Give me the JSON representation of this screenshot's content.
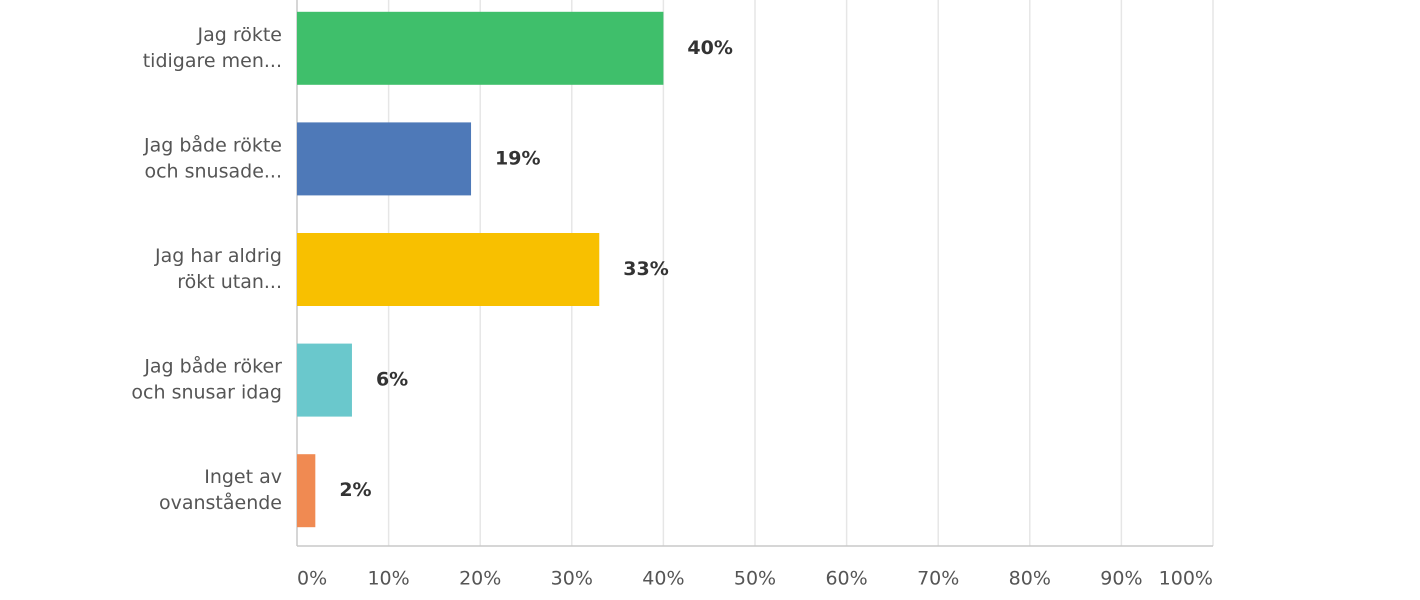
{
  "chart_data": {
    "type": "hbar",
    "categories": [
      [
        "Jag rökte",
        "tidigare men..."
      ],
      [
        "Jag både rökte",
        "och snusade..."
      ],
      [
        "Jag har aldrig",
        "rökt utan..."
      ],
      [
        "Jag både röker",
        "och snusar idag"
      ],
      [
        "Inget av",
        "ovanstående"
      ]
    ],
    "values": [
      40,
      19,
      33,
      6,
      2
    ],
    "value_labels": [
      "40%",
      "19%",
      "33%",
      "6%",
      "2%"
    ],
    "colors": [
      "#3fbf6b",
      "#4e79b8",
      "#f8c000",
      "#6ac8cc",
      "#f08a52"
    ],
    "xlim": [
      0,
      100
    ],
    "xticks": [
      {
        "value": 0,
        "label": "0%"
      },
      {
        "value": 10,
        "label": "10%"
      },
      {
        "value": 20,
        "label": "20%"
      },
      {
        "value": 30,
        "label": "30%"
      },
      {
        "value": 40,
        "label": "40%"
      },
      {
        "value": 50,
        "label": "50%"
      },
      {
        "value": 60,
        "label": "60%"
      },
      {
        "value": 70,
        "label": "70%"
      },
      {
        "value": 80,
        "label": "80%"
      },
      {
        "value": 90,
        "label": "90%"
      },
      {
        "value": 100,
        "label": "100%"
      }
    ],
    "grid": true
  }
}
